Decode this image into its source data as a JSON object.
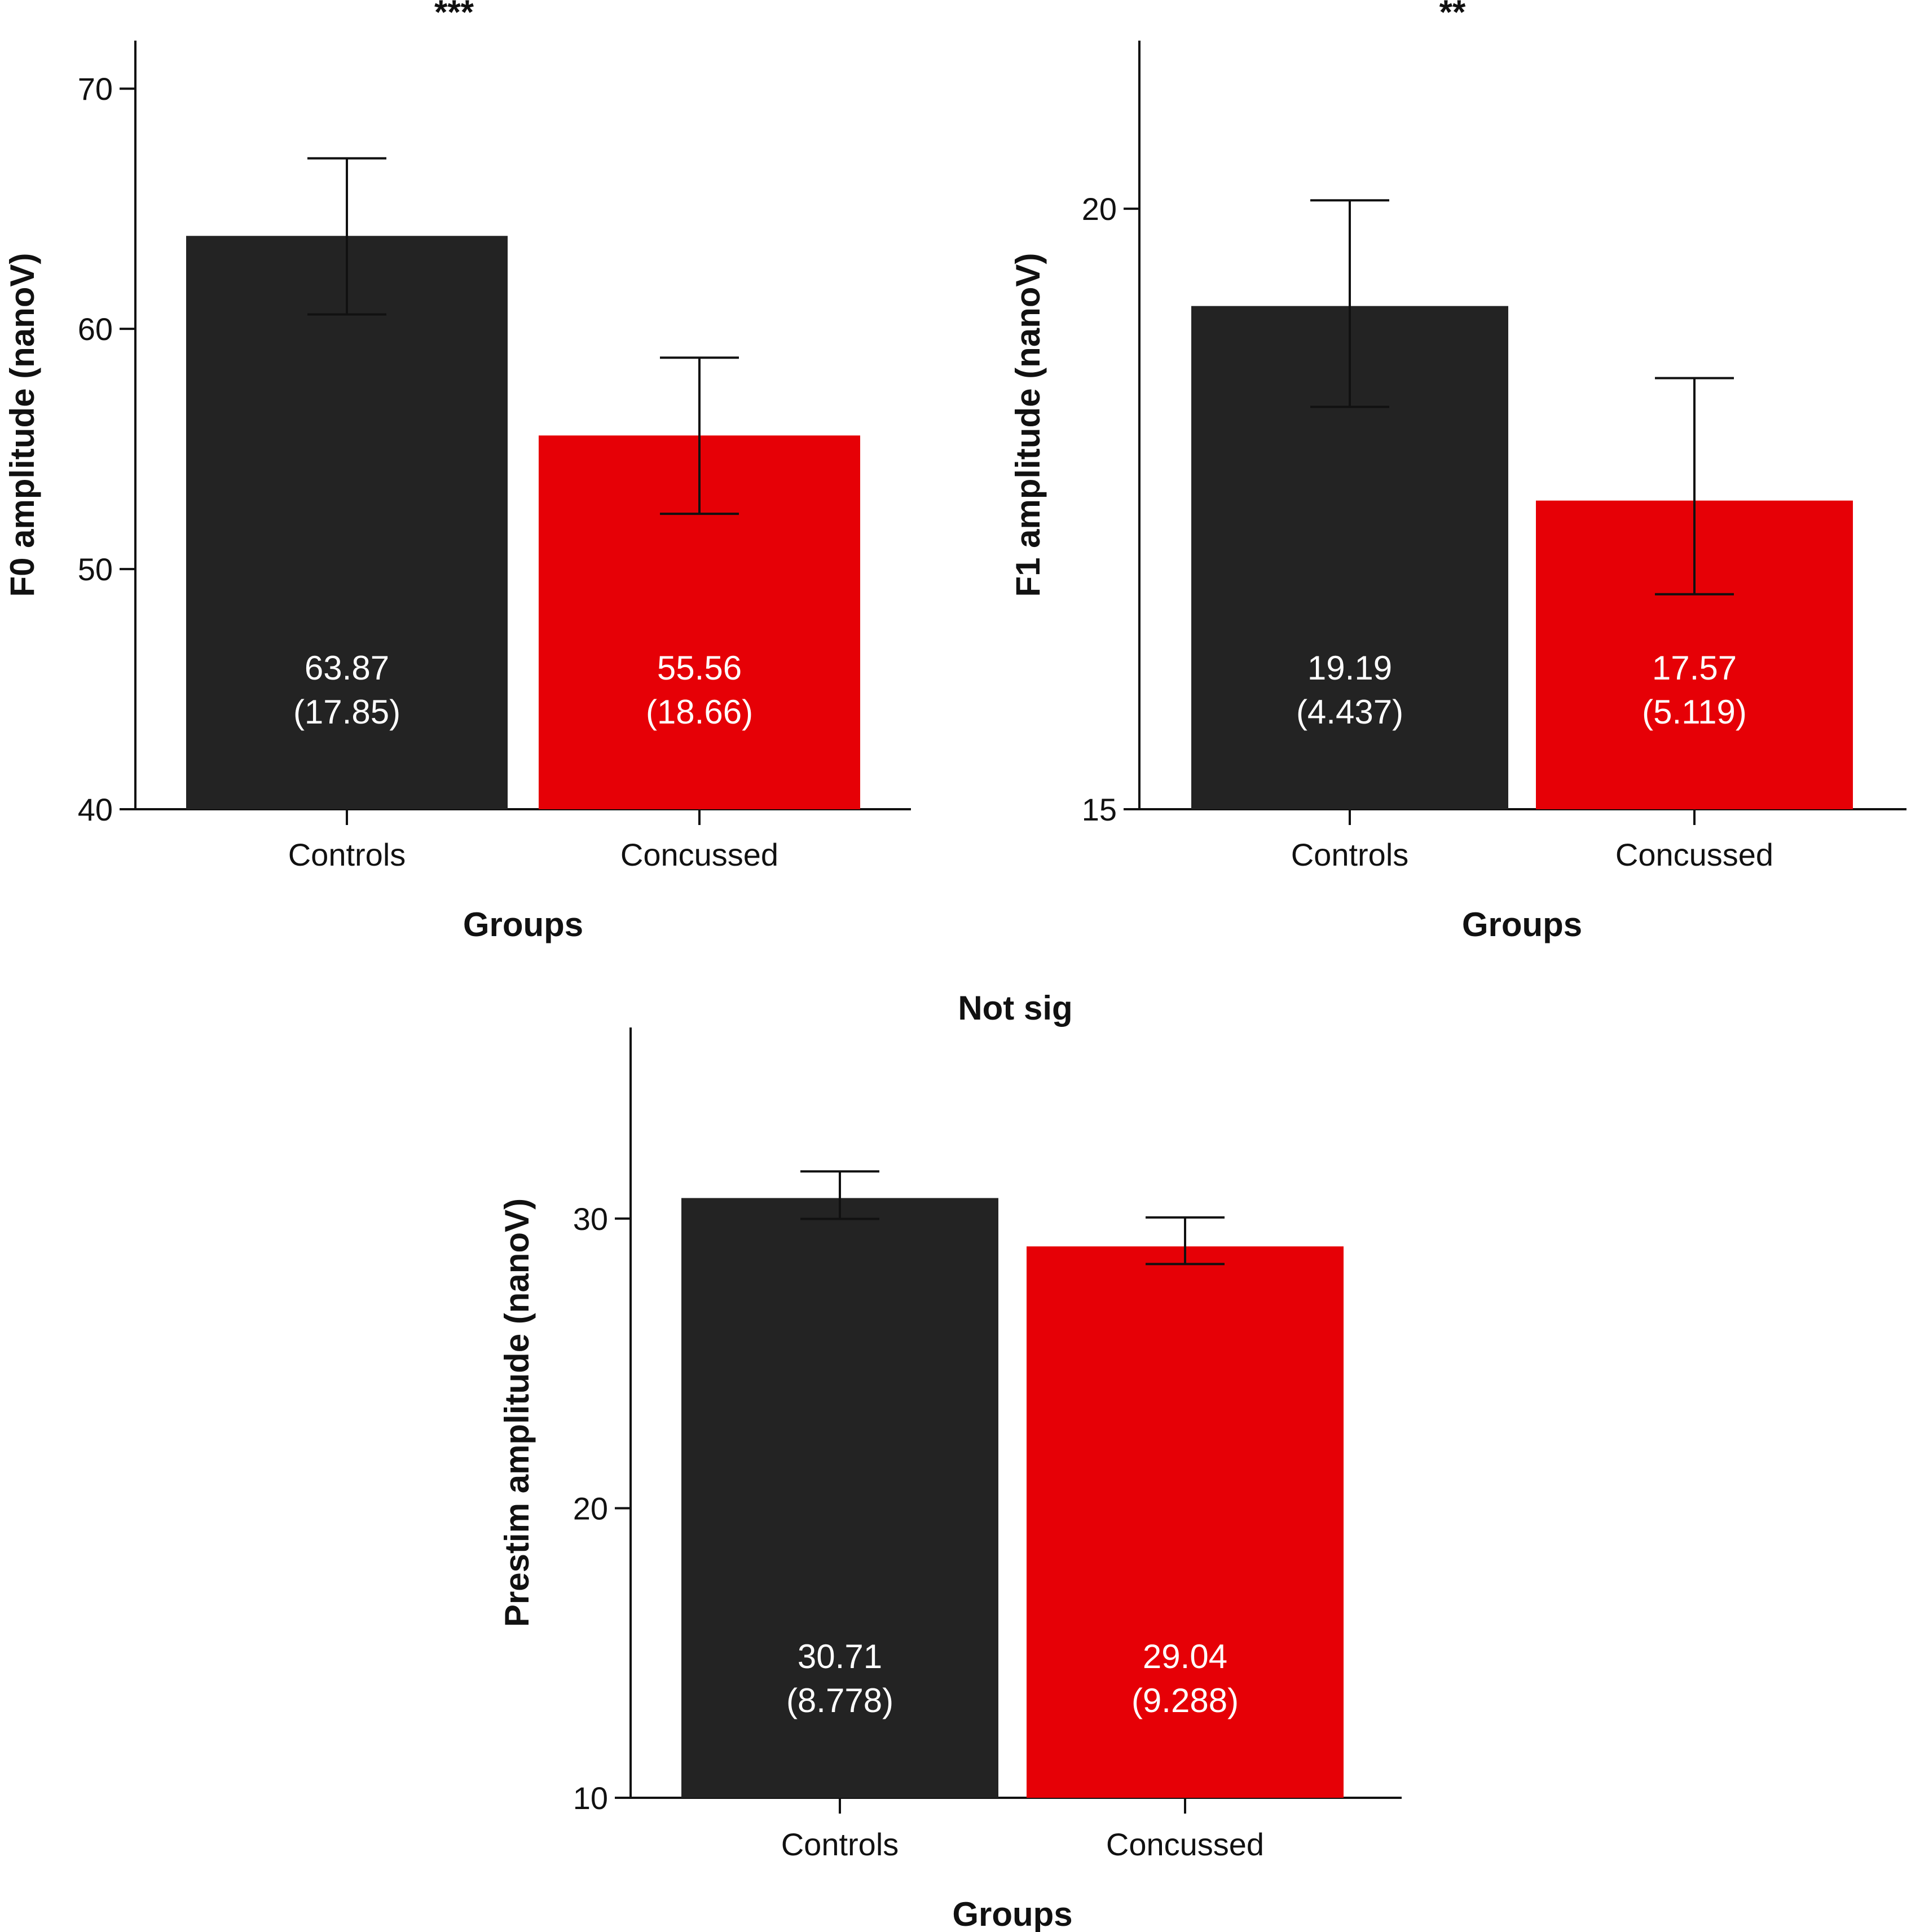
{
  "chart_data": [
    {
      "type": "bar",
      "id": "f0",
      "significance": "***",
      "categories": [
        "Controls",
        "Concussed"
      ],
      "values": [
        63.87,
        55.56
      ],
      "sd": [
        17.85,
        18.66
      ],
      "value_labels": [
        "63.87",
        "55.56"
      ],
      "sd_labels": [
        "(17.85)",
        "(18.66)"
      ],
      "error_low": [
        60.6,
        52.3
      ],
      "error_high": [
        67.1,
        58.8
      ],
      "colors": [
        "#232323",
        "#e60006"
      ],
      "ylim": [
        40,
        72
      ],
      "yticks": [
        40,
        50,
        60,
        70
      ],
      "ytick_labels": [
        "40",
        "50",
        "60",
        "70"
      ],
      "xlabel": "Groups",
      "ylabel": "F0 amplitude (nanoV)"
    },
    {
      "type": "bar",
      "id": "f1",
      "significance": "**",
      "categories": [
        "Controls",
        "Concussed"
      ],
      "values": [
        19.19,
        17.57
      ],
      "sd": [
        4.437,
        5.119
      ],
      "value_labels": [
        "19.19",
        "17.57"
      ],
      "sd_labels": [
        "(4.437)",
        "(5.119)"
      ],
      "error_low": [
        18.35,
        16.79
      ],
      "error_high": [
        20.07,
        18.59
      ],
      "colors": [
        "#232323",
        "#e60006"
      ],
      "ylim": [
        15,
        21.4
      ],
      "yticks": [
        15,
        20
      ],
      "ytick_labels": [
        "15",
        "20"
      ],
      "xlabel": "Groups",
      "ylabel": "F1 amplitude (nanoV)"
    },
    {
      "type": "bar",
      "id": "prestim",
      "significance": "Not sig",
      "categories": [
        "Controls",
        "Concussed"
      ],
      "values": [
        30.71,
        29.04
      ],
      "sd": [
        8.778,
        9.288
      ],
      "value_labels": [
        "30.71",
        "29.04"
      ],
      "sd_labels": [
        "(8.778)",
        "(9.288)"
      ],
      "error_low": [
        29.99,
        28.43
      ],
      "error_high": [
        31.63,
        30.04
      ],
      "colors": [
        "#232323",
        "#e60006"
      ],
      "ylim": [
        10,
        36.6
      ],
      "yticks": [
        10,
        20,
        30
      ],
      "ytick_labels": [
        "10",
        "20",
        "30"
      ],
      "xlabel": "Groups",
      "ylabel": "Prestim amplitude (nanoV)"
    }
  ]
}
